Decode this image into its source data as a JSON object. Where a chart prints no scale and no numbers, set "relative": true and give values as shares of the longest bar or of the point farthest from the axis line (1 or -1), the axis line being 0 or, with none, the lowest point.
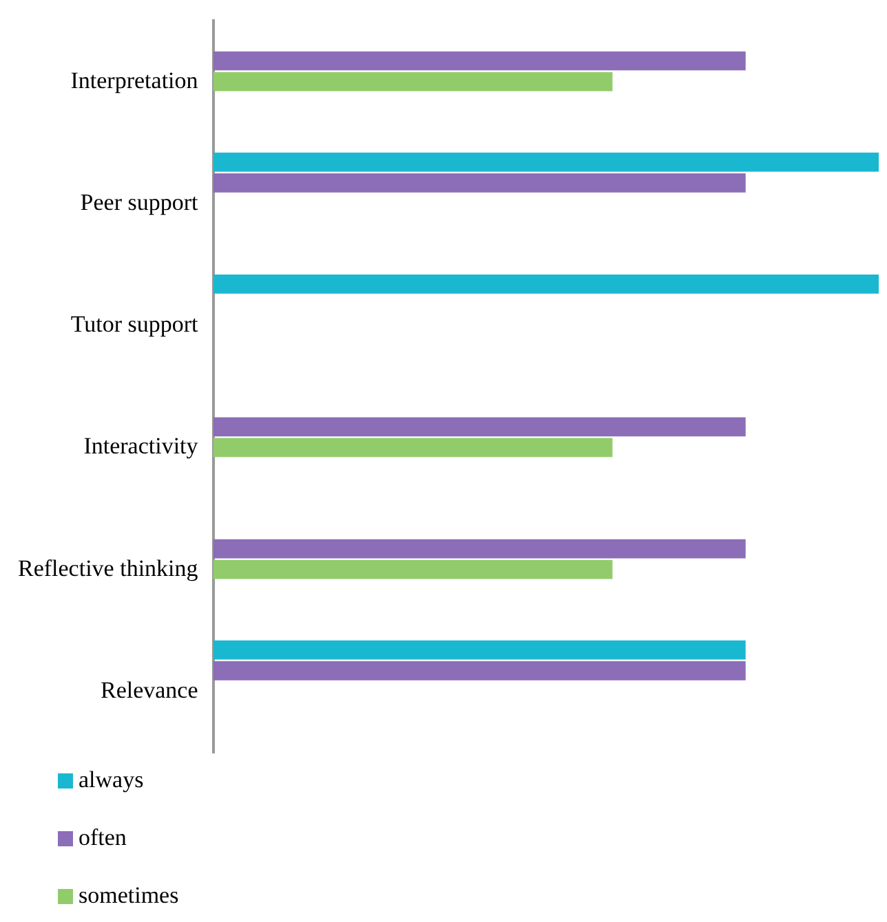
{
  "chart_data": {
    "type": "bar",
    "orientation": "horizontal",
    "relative": true,
    "legend": "bottom left",
    "categories": [
      "Interpretation",
      "Peer support",
      "Tutor support",
      "Interactivity",
      "Reflective thinking",
      "Relevance"
    ],
    "series": [
      {
        "name": "always",
        "color": "#1ab8d0",
        "values": [
          0,
          1,
          1,
          0,
          0,
          0.8
        ]
      },
      {
        "name": "often",
        "color": "#8c6db8",
        "values": [
          0.8,
          0.8,
          0,
          0.8,
          0.8,
          0.8
        ]
      },
      {
        "name": "sometimes",
        "color": "#92cc6a",
        "values": [
          0.6,
          0,
          0,
          0.6,
          0.6,
          0
        ]
      },
      {
        "color": "#c0504d",
        "values": [
          0,
          0,
          0,
          0,
          0,
          0
        ]
      },
      {
        "color": "#2e75b6",
        "values": [
          0,
          0,
          0,
          0,
          0,
          0
        ]
      }
    ]
  }
}
